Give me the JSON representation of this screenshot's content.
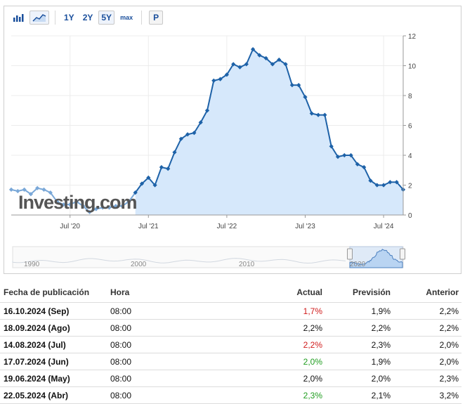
{
  "toolbar": {
    "ranges": [
      {
        "label": "1Y",
        "active": false
      },
      {
        "label": "2Y",
        "active": false
      },
      {
        "label": "5Y",
        "active": true
      },
      {
        "label": "max",
        "active": false
      }
    ],
    "p_label": "P"
  },
  "colors": {
    "line": "#1e62a8",
    "area": "#d6e8fb",
    "older_line": "#7aa8d8",
    "red": "#d01b1b",
    "green": "#1f9d1f"
  },
  "watermark": "Investing.com",
  "chart_data": {
    "type": "area",
    "y_ticks": [
      "0",
      "2",
      "4",
      "6",
      "8",
      "10",
      "12"
    ],
    "ylim": [
      0,
      12
    ],
    "x_ticks": [
      {
        "label": "Jul '20",
        "date": "2020-07"
      },
      {
        "label": "Jul '21",
        "date": "2021-07"
      },
      {
        "label": "Jul '22",
        "date": "2022-07"
      },
      {
        "label": "Jul '23",
        "date": "2023-07"
      },
      {
        "label": "Jul '24",
        "date": "2024-07"
      }
    ],
    "x_range": [
      "2019-10",
      "2024-10"
    ],
    "series": [
      {
        "points": [
          [
            "2019-10",
            1.7
          ],
          [
            "2019-11",
            1.6
          ],
          [
            "2019-12",
            1.7
          ],
          [
            "2020-01",
            1.4
          ],
          [
            "2020-02",
            1.8
          ],
          [
            "2020-03",
            1.7
          ],
          [
            "2020-04",
            1.5
          ],
          [
            "2020-05",
            0.9
          ],
          [
            "2020-06",
            0.7
          ],
          [
            "2020-07",
            0.7
          ],
          [
            "2020-08",
            0.9
          ],
          [
            "2020-09",
            0.6
          ],
          [
            "2020-10",
            0.2
          ],
          [
            "2020-11",
            0.4
          ],
          [
            "2020-12",
            0.5
          ],
          [
            "2021-01",
            0.5
          ],
          [
            "2021-02",
            0.6
          ],
          [
            "2021-03",
            0.6
          ],
          [
            "2021-04",
            0.9
          ],
          [
            "2021-05",
            1.5
          ],
          [
            "2021-06",
            2.1
          ],
          [
            "2021-07",
            2.5
          ],
          [
            "2021-08",
            2.0
          ],
          [
            "2021-09",
            3.2
          ],
          [
            "2021-10",
            3.1
          ],
          [
            "2021-11",
            4.2
          ],
          [
            "2021-12",
            5.1
          ],
          [
            "2022-01",
            5.4
          ],
          [
            "2022-02",
            5.5
          ],
          [
            "2022-03",
            6.2
          ],
          [
            "2022-04",
            7.0
          ],
          [
            "2022-05",
            9.0
          ],
          [
            "2022-06",
            9.1
          ],
          [
            "2022-07",
            9.4
          ],
          [
            "2022-08",
            10.1
          ],
          [
            "2022-09",
            9.9
          ],
          [
            "2022-10",
            10.1
          ],
          [
            "2022-11",
            11.1
          ],
          [
            "2022-12",
            10.7
          ],
          [
            "2023-01",
            10.5
          ],
          [
            "2023-02",
            10.1
          ],
          [
            "2023-03",
            10.4
          ],
          [
            "2023-04",
            10.1
          ],
          [
            "2023-05",
            8.7
          ],
          [
            "2023-06",
            8.7
          ],
          [
            "2023-07",
            7.9
          ],
          [
            "2023-08",
            6.8
          ],
          [
            "2023-09",
            6.7
          ],
          [
            "2023-10",
            6.7
          ],
          [
            "2023-11",
            4.6
          ],
          [
            "2023-12",
            3.9
          ],
          [
            "2024-01",
            4.0
          ],
          [
            "2024-02",
            4.0
          ],
          [
            "2024-03",
            3.4
          ],
          [
            "2024-04",
            3.2
          ],
          [
            "2024-05",
            2.3
          ],
          [
            "2024-06",
            2.0
          ],
          [
            "2024-07",
            2.0
          ],
          [
            "2024-08",
            2.2
          ],
          [
            "2024-09",
            2.2
          ],
          [
            "2024-10",
            1.7
          ]
        ]
      }
    ],
    "navigator_labels": [
      "1990",
      "2000",
      "2010",
      "2020"
    ]
  },
  "table": {
    "headers": {
      "date": "Fecha de publicación",
      "time": "Hora",
      "actual": "Actual",
      "forecast": "Previsión",
      "previous": "Anterior"
    },
    "rows": [
      {
        "date": "16.10.2024 (Sep)",
        "time": "08:00",
        "actual": "1,7%",
        "status": "red",
        "forecast": "1,9%",
        "previous": "2,2%"
      },
      {
        "date": "18.09.2024 (Ago)",
        "time": "08:00",
        "actual": "2,2%",
        "status": "",
        "forecast": "2,2%",
        "previous": "2,2%"
      },
      {
        "date": "14.08.2024 (Jul)",
        "time": "08:00",
        "actual": "2,2%",
        "status": "red",
        "forecast": "2,3%",
        "previous": "2,0%"
      },
      {
        "date": "17.07.2024 (Jun)",
        "time": "08:00",
        "actual": "2,0%",
        "status": "green",
        "forecast": "1,9%",
        "previous": "2,0%"
      },
      {
        "date": "19.06.2024 (May)",
        "time": "08:00",
        "actual": "2,0%",
        "status": "",
        "forecast": "2,0%",
        "previous": "2,3%"
      },
      {
        "date": "22.05.2024 (Abr)",
        "time": "08:00",
        "actual": "2,3%",
        "status": "green",
        "forecast": "2,1%",
        "previous": "3,2%"
      }
    ]
  }
}
